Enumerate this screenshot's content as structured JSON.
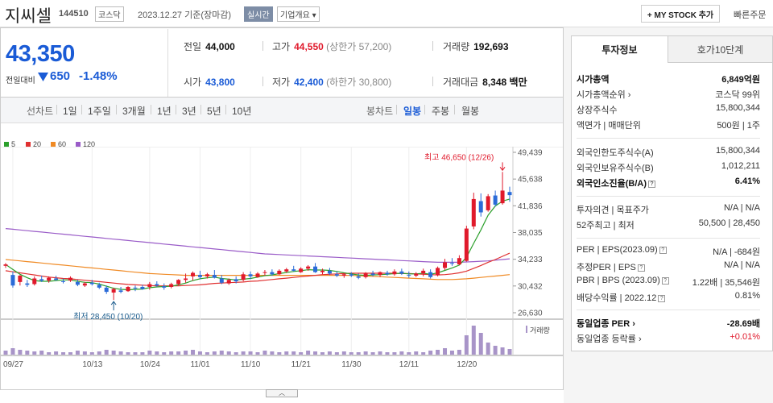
{
  "header": {
    "name": "지씨셀",
    "code": "144510",
    "market": "코스닥",
    "date": "2023.12.27 기준(장마감)",
    "realtime": "실시간",
    "overview": "기업개요 ▾",
    "mystock": "+ MY STOCK 추가",
    "quick_order": "빠른주문"
  },
  "quote": {
    "price": "43,350",
    "change_label": "전일대비",
    "change": "650",
    "change_pct": "-1.48%",
    "stats": [
      {
        "label": "전일",
        "value": "44,000",
        "extra": ""
      },
      {
        "label": "고가",
        "value": "44,550",
        "extra": "(상한가 57,200)"
      },
      {
        "label": "거래량",
        "value": "192,693",
        "extra": ""
      },
      {
        "label": "시가",
        "value": "43,800",
        "extra": ""
      },
      {
        "label": "저가",
        "value": "42,400",
        "extra": "(하한가 30,800)"
      },
      {
        "label": "거래대금",
        "value": "8,348",
        "extra": "백만"
      }
    ]
  },
  "periods": {
    "line_label": "선차트",
    "line_tabs": [
      "1일",
      "1주일",
      "3개월",
      "1년",
      "3년",
      "5년",
      "10년"
    ],
    "candle_label": "봉차트",
    "candle_tabs": [
      "일봉",
      "주봉",
      "월봉"
    ]
  },
  "legend": [
    {
      "label": "5",
      "color": "#2ca02c"
    },
    {
      "label": "20",
      "color": "#e03030"
    },
    {
      "label": "60",
      "color": "#f08a24"
    },
    {
      "label": "120",
      "color": "#9a5cc8"
    }
  ],
  "chart_data": {
    "type": "candlestick",
    "yticks": [
      "49,439",
      "45,638",
      "41,836",
      "38,035",
      "34,233",
      "30,432",
      "26,630"
    ],
    "ylim": [
      26630,
      49439
    ],
    "xticks": [
      "09/27",
      "10/13",
      "10/24",
      "11/01",
      "11/10",
      "11/21",
      "11/30",
      "12/11",
      "12/20"
    ],
    "high_label": "최고 46,650 (12/26)",
    "low_label": "최저 28,450 (10/20)",
    "volume_label": "거래량",
    "candles": [
      [
        33300,
        33700,
        33000,
        33500
      ],
      [
        32000,
        32500,
        30200,
        30500
      ],
      [
        31000,
        32000,
        30500,
        31900
      ],
      [
        30800,
        31300,
        30300,
        30600
      ],
      [
        30700,
        31800,
        30500,
        31500
      ],
      [
        31400,
        31900,
        31000,
        31200
      ],
      [
        31200,
        31800,
        30900,
        31600
      ],
      [
        31500,
        31900,
        31200,
        31300
      ],
      [
        31100,
        31500,
        30800,
        31000
      ],
      [
        31200,
        31800,
        31000,
        31600
      ],
      [
        31000,
        31300,
        30400,
        30600
      ],
      [
        30500,
        31000,
        30300,
        30800
      ],
      [
        30900,
        31300,
        30500,
        30700
      ],
      [
        30600,
        30900,
        30000,
        30200
      ],
      [
        30200,
        30500,
        29300,
        29600
      ],
      [
        29500,
        30200,
        28450,
        30000
      ],
      [
        29800,
        30300,
        29400,
        29600
      ],
      [
        29700,
        30400,
        29600,
        30300
      ],
      [
        30200,
        30500,
        29700,
        30100
      ],
      [
        30300,
        30600,
        29900,
        30000
      ],
      [
        30300,
        31000,
        29900,
        30700
      ],
      [
        30700,
        31100,
        30300,
        30500
      ],
      [
        30400,
        30800,
        29900,
        30200
      ],
      [
        30300,
        30900,
        30100,
        30700
      ],
      [
        30700,
        31400,
        30500,
        31300
      ],
      [
        31300,
        32200,
        30900,
        31500
      ],
      [
        31800,
        32500,
        31200,
        32300
      ],
      [
        32000,
        32600,
        31400,
        31700
      ],
      [
        31800,
        32300,
        31500,
        32100
      ],
      [
        32000,
        32700,
        31500,
        31600
      ],
      [
        31500,
        32000,
        30700,
        30900
      ],
      [
        30800,
        31500,
        30600,
        31300
      ],
      [
        31400,
        31800,
        30800,
        31100
      ],
      [
        31300,
        32400,
        31100,
        32100
      ],
      [
        32100,
        32500,
        31400,
        31800
      ],
      [
        31700,
        32400,
        31600,
        32200
      ],
      [
        32300,
        32700,
        31900,
        32400
      ],
      [
        32400,
        32800,
        31900,
        32100
      ],
      [
        32100,
        32800,
        32000,
        32600
      ],
      [
        32500,
        33000,
        32300,
        32800
      ],
      [
        32800,
        33300,
        32500,
        32600
      ],
      [
        32400,
        33100,
        32300,
        32900
      ],
      [
        32900,
        33400,
        32600,
        33200
      ],
      [
        33200,
        33700,
        32300,
        32400
      ],
      [
        32400,
        32900,
        32100,
        32600
      ],
      [
        32600,
        33000,
        32000,
        32200
      ],
      [
        32100,
        32500,
        31700,
        31900
      ],
      [
        31900,
        32300,
        31600,
        32100
      ],
      [
        32100,
        32400,
        31700,
        31900
      ],
      [
        31800,
        32200,
        31400,
        31600
      ],
      [
        31700,
        32400,
        31500,
        32200
      ],
      [
        32200,
        32600,
        31800,
        32000
      ],
      [
        32000,
        32500,
        31700,
        32400
      ],
      [
        32300,
        32600,
        31900,
        32100
      ],
      [
        32100,
        32800,
        31900,
        32500
      ],
      [
        32500,
        32900,
        32000,
        32200
      ],
      [
        32000,
        32500,
        31600,
        31900
      ],
      [
        31900,
        32400,
        31700,
        32200
      ],
      [
        32200,
        32900,
        31800,
        32600
      ],
      [
        32400,
        32800,
        31500,
        31700
      ],
      [
        32000,
        33200,
        31800,
        33000
      ],
      [
        33000,
        34300,
        32700,
        33800
      ],
      [
        33700,
        34400,
        33300,
        33600
      ],
      [
        33500,
        34800,
        33400,
        34400
      ],
      [
        34000,
        39000,
        33900,
        38600
      ],
      [
        38900,
        43700,
        38500,
        42800
      ],
      [
        42500,
        43600,
        40300,
        40900
      ],
      [
        41200,
        43500,
        41000,
        43200
      ],
      [
        43300,
        44000,
        41700,
        42000
      ],
      [
        42200,
        46650,
        42000,
        44000
      ],
      [
        43800,
        44550,
        42400,
        43350
      ]
    ],
    "ma5": [
      33500,
      32800,
      32100,
      31600,
      31200,
      31100,
      31100,
      31200,
      31300,
      31300,
      31100,
      30950,
      30900,
      30700,
      30400,
      30100,
      29950,
      29900,
      29950,
      30000,
      30200,
      30300,
      30350,
      30400,
      30600,
      30850,
      31200,
      31450,
      31600,
      31700,
      31500,
      31400,
      31300,
      31400,
      31500,
      31700,
      31900,
      32000,
      32200,
      32350,
      32500,
      32600,
      32750,
      32700,
      32700,
      32650,
      32500,
      32300,
      32150,
      32000,
      31950,
      32000,
      32050,
      32100,
      32200,
      32250,
      32150,
      32150,
      32250,
      32100,
      32300,
      32650,
      33000,
      33400,
      34500,
      36500,
      38400,
      40500,
      41800,
      42500,
      42800
    ],
    "ma20": [
      32600,
      32450,
      32300,
      32150,
      32000,
      31850,
      31700,
      31600,
      31500,
      31450,
      31350,
      31250,
      31150,
      31050,
      30950,
      30850,
      30750,
      30650,
      30600,
      30550,
      30500,
      30450,
      30450,
      30450,
      30450,
      30500,
      30550,
      30600,
      30700,
      30800,
      30850,
      30900,
      30950,
      31000,
      31100,
      31150,
      31250,
      31350,
      31450,
      31550,
      31650,
      31750,
      31850,
      31950,
      32050,
      32100,
      32150,
      32200,
      32250,
      32250,
      32250,
      32250,
      32250,
      32250,
      32250,
      32200,
      32200,
      32150,
      32100,
      32050,
      32000,
      32050,
      32150,
      32300,
      32550,
      32950,
      33350,
      33800,
      34200,
      34650,
      35100
    ],
    "ma60": [
      34200,
      34100,
      34000,
      33900,
      33800,
      33700,
      33600,
      33500,
      33400,
      33300,
      33200,
      33100,
      33000,
      32900,
      32800,
      32700,
      32600,
      32500,
      32400,
      32300,
      32200,
      32150,
      32100,
      32050,
      32000,
      31950,
      31950,
      31950,
      31950,
      31950,
      31950,
      31950,
      31950,
      31950,
      31950,
      31950,
      31950,
      31950,
      31950,
      31950,
      31950,
      31950,
      31950,
      31950,
      31950,
      31950,
      31950,
      31950,
      31950,
      31900,
      31850,
      31800,
      31750,
      31700,
      31650,
      31600,
      31550,
      31500,
      31450,
      31400,
      31350,
      31350,
      31350,
      31400,
      31450,
      31550,
      31650,
      31750,
      31850,
      31950,
      32050
    ],
    "ma120": [
      38600,
      38500,
      38400,
      38300,
      38200,
      38100,
      38000,
      37900,
      37800,
      37700,
      37600,
      37500,
      37400,
      37300,
      37200,
      37100,
      37000,
      36900,
      36800,
      36700,
      36600,
      36500,
      36400,
      36300,
      36200,
      36100,
      36000,
      35900,
      35800,
      35700,
      35600,
      35500,
      35400,
      35300,
      35200,
      35100,
      35000,
      34950,
      34900,
      34850,
      34800,
      34750,
      34700,
      34650,
      34600,
      34550,
      34500,
      34450,
      34400,
      34350,
      34300,
      34250,
      34200,
      34150,
      34100,
      34050,
      34000,
      33950,
      33900,
      33850,
      33800,
      33800,
      33800,
      33800,
      33850,
      33900,
      33950,
      34000,
      34100,
      34200,
      34300
    ],
    "volume": [
      5,
      8,
      6,
      5,
      4,
      5,
      3,
      4,
      3,
      3,
      5,
      4,
      3,
      4,
      6,
      5,
      4,
      3,
      3,
      3,
      5,
      4,
      3,
      4,
      4,
      5,
      6,
      4,
      3,
      4,
      5,
      4,
      3,
      4,
      4,
      3,
      5,
      4,
      3,
      4,
      4,
      3,
      5,
      4,
      3,
      4,
      3,
      4,
      3,
      3,
      4,
      3,
      4,
      3,
      3,
      4,
      3,
      4,
      3,
      5,
      6,
      8,
      5,
      6,
      24,
      36,
      27,
      15,
      11,
      9,
      7
    ]
  },
  "invest": {
    "tab1": "투자정보",
    "tab2": "호가10단계",
    "rows": [
      {
        "l": "시가총액",
        "r": "6,849억원",
        "bold": true
      },
      {
        "l": "시가총액순위 ›",
        "r": "코스닥 99위"
      },
      {
        "l": "상장주식수",
        "r": "15,800,344"
      },
      {
        "l": "액면가 | 매매단위",
        "r": "500원 | 1주"
      },
      {
        "l": "외국인한도주식수(A)",
        "r": "15,800,344"
      },
      {
        "l": "외국인보유주식수(B)",
        "r": "1,012,211"
      },
      {
        "l": "외국인소진율(B/A)",
        "r": "6.41%",
        "bold": true
      },
      {
        "l": "투자의견 | 목표주가",
        "r": "N/A | N/A"
      },
      {
        "l": "52주최고 | 최저",
        "r": "50,500 | 28,450"
      },
      {
        "l": "PER | EPS(2023.09)",
        "r": "N/A | -684원"
      },
      {
        "l": "추정PER | EPS",
        "r": "N/A | N/A"
      },
      {
        "l": "PBR | BPS (2023.09)",
        "r": "1.22배 | 35,546원"
      },
      {
        "l": "배당수익률 | 2022.12",
        "r": "0.81%"
      },
      {
        "l": "동일업종 PER ›",
        "r": "-28.69배",
        "bold": true
      },
      {
        "l": "동일업종 등락률 ›",
        "r": "+0.01%"
      }
    ]
  }
}
